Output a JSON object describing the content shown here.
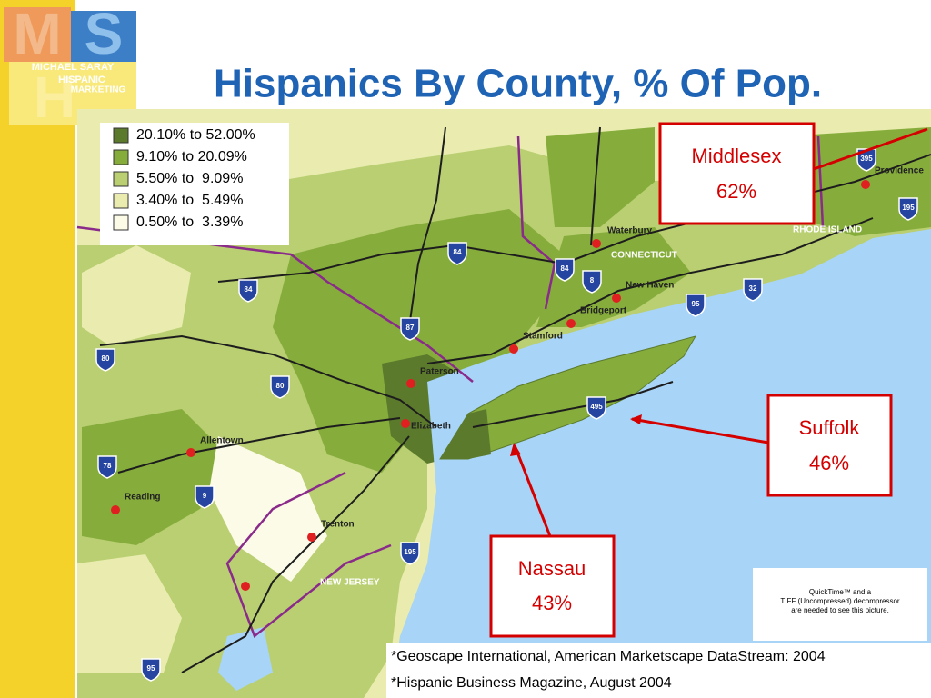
{
  "header": {
    "title": "Hispanics By County, % Of Pop."
  },
  "logo": {
    "letters": [
      "M",
      "S",
      "H"
    ],
    "name": "MICHAEL SARAY",
    "line1": "HISPANIC",
    "line2": "MARKETING"
  },
  "legend": {
    "items": [
      {
        "label": "20.10% to 52.00%",
        "color": "#5b7a2c"
      },
      {
        "label": "9.10% to 20.09%",
        "color": "#86ad3c"
      },
      {
        "label": "5.50% to  9.09%",
        "color": "#b9cf72"
      },
      {
        "label": "3.40% to  5.49%",
        "color": "#e9ecae"
      },
      {
        "label": "0.50% to  3.39%",
        "color": "#fbfbe8"
      }
    ]
  },
  "map_labels": [
    "Waterbury",
    "CONNECTICUT",
    "New Haven",
    "Bridgeport",
    "Stamford",
    "Paterson",
    "Elizabeth",
    "Allentown",
    "Reading",
    "Trenton",
    "NEW JERSEY",
    "RHODE ISLAND",
    "Providence"
  ],
  "highways": [
    "84",
    "84",
    "84",
    "87",
    "80",
    "80",
    "78",
    "9",
    "195",
    "95",
    "495",
    "8",
    "95",
    "32",
    "395",
    "195"
  ],
  "callouts": [
    {
      "name": "Middlesex",
      "value": "62%"
    },
    {
      "name": "Suffolk",
      "value": "46%"
    },
    {
      "name": "Nassau",
      "value": "43%"
    }
  ],
  "notice": [
    "QuickTime™ and a",
    "TIFF (Uncompressed) decompressor",
    "are needed to see this picture."
  ],
  "sources": [
    "*Geoscape International, American Marketscape DataStream: 2004",
    "*Hispanic Business Magazine, August 2004"
  ]
}
